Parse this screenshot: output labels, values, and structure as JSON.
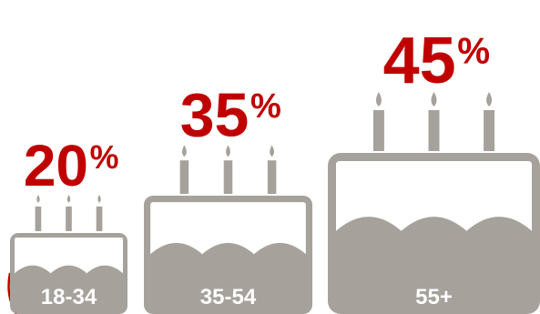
{
  "chart_data": {
    "type": "bar",
    "categories": [
      "18-34",
      "35-54",
      "55+"
    ],
    "values": [
      20,
      35,
      45
    ],
    "value_labels": [
      {
        "number": "20",
        "unit": "%"
      },
      {
        "number": "35",
        "unit": "%"
      },
      {
        "number": "45",
        "unit": "%"
      }
    ],
    "title": "",
    "xlabel": "",
    "ylabel": "",
    "value_color": "#c00000",
    "cake_color": "#a6a29b",
    "frosting_color": "#ffffff",
    "label_color": "#ffffff"
  }
}
